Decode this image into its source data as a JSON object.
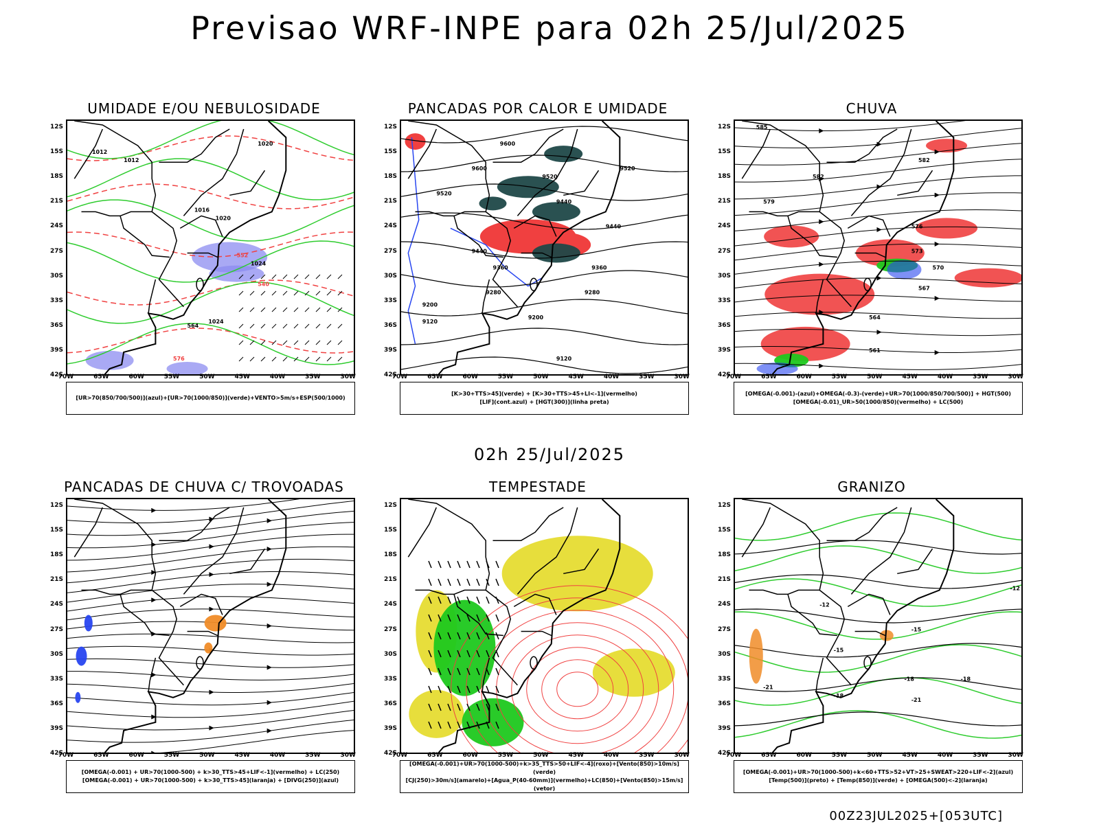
{
  "page": {
    "title": "Previsao WRF-INPE  para 02h 25/Jul/2025",
    "mid_date": "02h 25/Jul/2025",
    "footer": "00Z23JUL2025+[053UTC]"
  },
  "axes": {
    "lat_labels": [
      "12S",
      "15S",
      "18S",
      "21S",
      "24S",
      "27S",
      "30S",
      "33S",
      "36S",
      "39S",
      "42S"
    ],
    "lon_labels": [
      "70W",
      "65W",
      "60W",
      "55W",
      "50W",
      "45W",
      "40W",
      "35W",
      "30W"
    ]
  },
  "panels": [
    {
      "title": "UMIDADE E/OU NEBULOSIDADE",
      "legend": [
        "[UR>70(850/700/500)](azul)+[UR>70(1000/850)](verde)+VENTO>5m/s+ESP(500/1000)"
      ],
      "contour_labels": [
        "1012",
        "1016",
        "1020",
        "1024",
        "564",
        "552",
        "540",
        "576"
      ]
    },
    {
      "title": "PANCADAS POR CALOR E UMIDADE",
      "legend": [
        "[K>30+TTS>45](verde) + [K>30+TTS>45+LI<-1](vermelho)",
        "[LIF](cont.azul) + [HGT(300)](linha preta)"
      ],
      "contour_labels": [
        "9600",
        "9520",
        "9440",
        "9360",
        "9280",
        "9200",
        "9120"
      ]
    },
    {
      "title": "CHUVA",
      "legend": [
        "[OMEGA(-0.001)-(azul)+OMEGA(-0.3)-(verde)+UR>70(1000/850/700/500)] + HGT(500)",
        "[OMEGA(-0.01)_UR>50(1000/850)(vermelho) + LC(500)"
      ],
      "contour_labels": [
        "585",
        "582",
        "579",
        "576",
        "573",
        "570",
        "567",
        "564",
        "561"
      ]
    },
    {
      "title": "PANCADAS DE CHUVA C/ TROVOADAS",
      "legend": [
        "[OMEGA(-0.001) + UR>70(1000-500) + k>30_TTS>45+LIF<-1](vermelho) + LC(250)",
        "[OMEGA(-0.001) + UR>70(1000-500) + k>30_TTS>45](laranja) + [DIVG(250)](azul)"
      ],
      "contour_labels": []
    },
    {
      "title": "TEMPESTADE",
      "legend": [
        "[OMEGA(-0.001)+UR>70(1000-500)+k>35_TTS>50+LIF<-4](roxo)+[Vento(850)>10m/s](verde)",
        "[CJ(250)>30m/s](amarelo)+[Agua_P(40-60mm)](vermelho)+LC(850)+[Vento(850)>15m/s](vetor)"
      ],
      "contour_labels": []
    },
    {
      "title": "GRANIZO",
      "legend": [
        "[OMEGA(-0.001)+UR>70(1000-500)+k<60+TTS>52+VT>25+SWEAT>220+LIF<-2](azul)",
        "[Temp(500)](preto) + [Temp(850)](verde) + [OMEGA(500)<-2](laranja)"
      ],
      "contour_labels": [
        "-12",
        "-15",
        "-18",
        "-21"
      ]
    }
  ],
  "colors": {
    "coast": "#000000",
    "humidity_blue": "#8c8cf0",
    "humidity_green": "#2ecc2e",
    "red": "#f04040",
    "dark_teal": "#1f4848",
    "yellow": "#e6dc32",
    "green_fill": "#1ec81e",
    "orange": "#f08c28",
    "blue": "#2846f0"
  }
}
